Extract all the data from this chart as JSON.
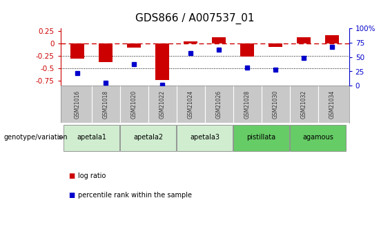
{
  "title": "GDS866 / A007537_01",
  "samples": [
    "GSM21016",
    "GSM21018",
    "GSM21020",
    "GSM21022",
    "GSM21024",
    "GSM21026",
    "GSM21028",
    "GSM21030",
    "GSM21032",
    "GSM21034"
  ],
  "log_ratio": [
    -0.31,
    -0.38,
    -0.08,
    -0.73,
    0.04,
    0.13,
    -0.27,
    -0.07,
    0.12,
    0.17
  ],
  "percentile_rank": [
    22,
    5,
    38,
    2,
    57,
    63,
    32,
    28,
    48,
    68
  ],
  "groups": [
    {
      "label": "apetala1",
      "samples": [
        "GSM21016",
        "GSM21018"
      ],
      "color": "#d0edd0"
    },
    {
      "label": "apetala2",
      "samples": [
        "GSM21020",
        "GSM21022"
      ],
      "color": "#d0edd0"
    },
    {
      "label": "apetala3",
      "samples": [
        "GSM21024",
        "GSM21026"
      ],
      "color": "#d0edd0"
    },
    {
      "label": "pistillata",
      "samples": [
        "GSM21028",
        "GSM21030"
      ],
      "color": "#66cc66"
    },
    {
      "label": "agamous",
      "samples": [
        "GSM21032",
        "GSM21034"
      ],
      "color": "#66cc66"
    }
  ],
  "ylim_left": [
    -0.85,
    0.3
  ],
  "ylim_right": [
    0,
    100
  ],
  "yticks_left": [
    -0.75,
    -0.5,
    -0.25,
    0,
    0.25
  ],
  "yticks_right": [
    0,
    25,
    50,
    75,
    100
  ],
  "bar_color": "#cc0000",
  "dot_color": "#0000cc",
  "bg_color": "white",
  "sample_row_bg": "#c8c8c8",
  "genotype_label": "genotype/variation",
  "legend_bar": "log ratio",
  "legend_dot": "percentile rank within the sample",
  "title_fontsize": 11,
  "tick_fontsize": 7.5,
  "sample_fontsize": 5.5,
  "group_fontsize": 7,
  "legend_fontsize": 7,
  "genotype_fontsize": 7
}
